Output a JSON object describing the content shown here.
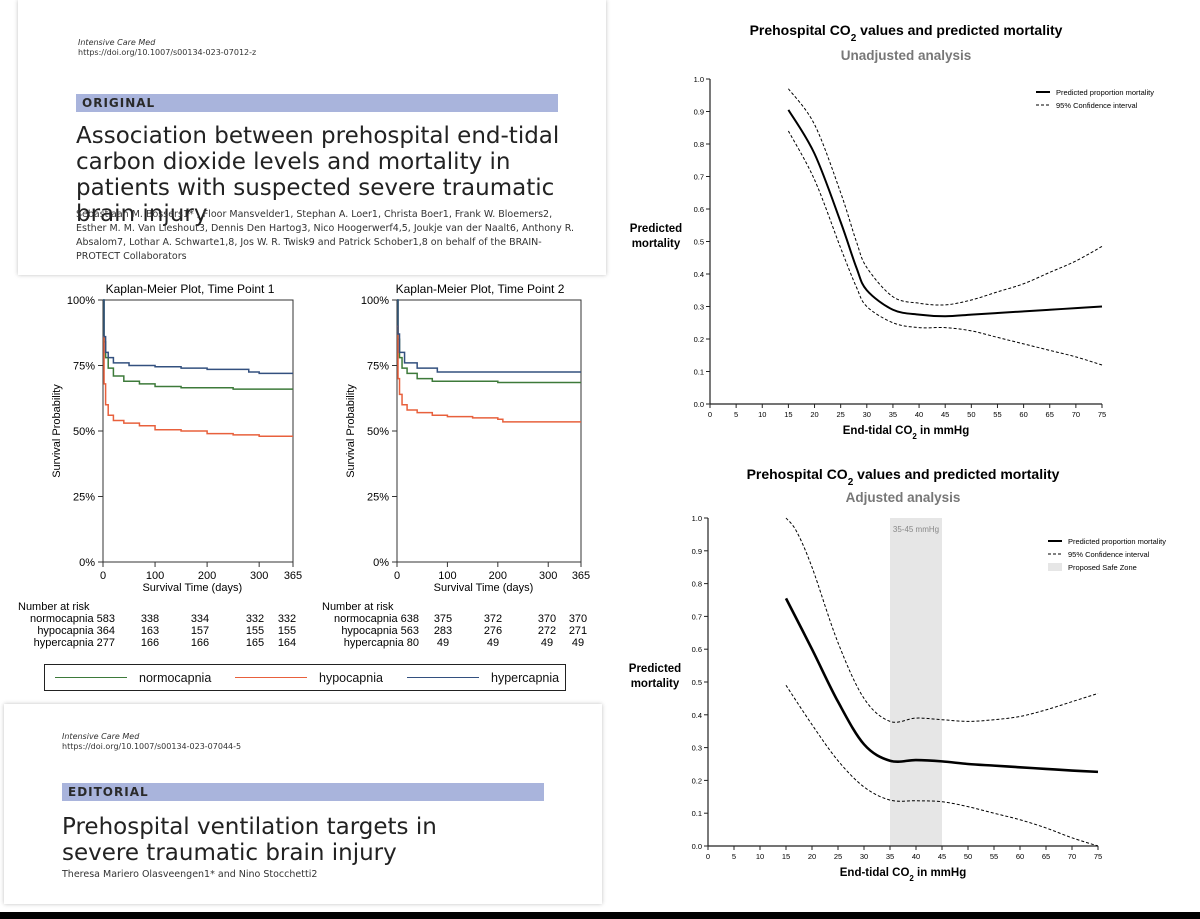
{
  "article_original": {
    "journal": "Intensive Care Med",
    "doi": "https://doi.org/10.1007/s00134-023-07012-z",
    "tag": "ORIGINAL",
    "title": "Association between prehospital end-tidal carbon dioxide levels and mortality in patients with suspected severe traumatic brain injury",
    "authors": "Sebastiaan M. Bossers1* , Floor Mansvelder1, Stephan A. Loer1, Christa Boer1, Frank W. Bloemers2, Esther M. M. Van Lieshout3, Dennis Den Hartog3, Nico Hoogerwerf4,5, Joukje van der Naalt6, Anthony R. Absalom7, Lothar A. Schwarte1,8, Jos W. R. Twisk9 and Patrick Schober1,8 on behalf of the BRAIN-PROTECT Collaborators"
  },
  "article_editorial": {
    "journal": "Intensive Care Med",
    "doi": "https://doi.org/10.1007/s00134-023-07044-5",
    "tag": "EDITORIAL",
    "title": "Prehospital ventilation targets in severe traumatic brain injury",
    "authors": "Theresa Mariero Olasveengen1* and Nino Stocchetti2"
  },
  "colors": {
    "normocapnia": "#3d7a3a",
    "hypocapnia": "#e8603c",
    "hypercapnia": "#33507f",
    "tag_bar": "#a9b4dc",
    "safe_zone": "#e6e6e6"
  },
  "chart_data": [
    {
      "type": "line",
      "title": "Kaplan-Meier Plot, Time Point 1",
      "xlabel": "Survival Time (days)",
      "ylabel": "Survival Probability",
      "xlim": [
        0,
        365
      ],
      "ylim": [
        0,
        1
      ],
      "x_ticks": [
        0,
        100,
        200,
        300,
        365
      ],
      "y_ticks": [
        "0%",
        "25%",
        "50%",
        "75%",
        "100%"
      ],
      "grid": false,
      "series": [
        {
          "name": "normocapnia",
          "points": [
            [
              0,
              1.0
            ],
            [
              2,
              0.84
            ],
            [
              5,
              0.78
            ],
            [
              10,
              0.74
            ],
            [
              20,
              0.71
            ],
            [
              40,
              0.69
            ],
            [
              70,
              0.68
            ],
            [
              100,
              0.67
            ],
            [
              150,
              0.665
            ],
            [
              200,
              0.665
            ],
            [
              250,
              0.66
            ],
            [
              300,
              0.66
            ],
            [
              365,
              0.66
            ]
          ]
        },
        {
          "name": "hypocapnia",
          "points": [
            [
              0,
              0.86
            ],
            [
              2,
              0.68
            ],
            [
              5,
              0.6
            ],
            [
              10,
              0.56
            ],
            [
              20,
              0.54
            ],
            [
              40,
              0.53
            ],
            [
              70,
              0.52
            ],
            [
              100,
              0.505
            ],
            [
              150,
              0.5
            ],
            [
              200,
              0.49
            ],
            [
              250,
              0.485
            ],
            [
              300,
              0.48
            ],
            [
              365,
              0.48
            ]
          ]
        },
        {
          "name": "hypercapnia",
          "points": [
            [
              0,
              1.0
            ],
            [
              2,
              0.86
            ],
            [
              5,
              0.8
            ],
            [
              10,
              0.78
            ],
            [
              20,
              0.76
            ],
            [
              50,
              0.75
            ],
            [
              100,
              0.745
            ],
            [
              150,
              0.74
            ],
            [
              200,
              0.735
            ],
            [
              280,
              0.725
            ],
            [
              300,
              0.72
            ],
            [
              365,
              0.72
            ]
          ]
        }
      ],
      "risk_table": {
        "header": "Number at risk",
        "rows": [
          {
            "label": "normocapnia 583",
            "values": [
              "338",
              "334",
              "332",
              "332"
            ]
          },
          {
            "label": "hypocapnia 364",
            "values": [
              "163",
              "157",
              "155",
              "155"
            ]
          },
          {
            "label": "hypercapnia 277",
            "values": [
              "166",
              "166",
              "165",
              "164"
            ]
          }
        ]
      }
    },
    {
      "type": "line",
      "title": "Kaplan-Meier Plot, Time Point 2",
      "xlabel": "Survival Time (days)",
      "ylabel": "Survival Probability",
      "xlim": [
        0,
        365
      ],
      "ylim": [
        0,
        1
      ],
      "x_ticks": [
        0,
        100,
        200,
        300,
        365
      ],
      "y_ticks": [
        "0%",
        "25%",
        "50%",
        "75%",
        "100%"
      ],
      "grid": false,
      "series": [
        {
          "name": "normocapnia",
          "points": [
            [
              0,
              1.0
            ],
            [
              2,
              0.85
            ],
            [
              5,
              0.78
            ],
            [
              10,
              0.74
            ],
            [
              20,
              0.72
            ],
            [
              40,
              0.7
            ],
            [
              70,
              0.69
            ],
            [
              100,
              0.69
            ],
            [
              200,
              0.685
            ],
            [
              300,
              0.685
            ],
            [
              365,
              0.685
            ]
          ]
        },
        {
          "name": "hypocapnia",
          "points": [
            [
              0,
              0.9
            ],
            [
              2,
              0.7
            ],
            [
              5,
              0.64
            ],
            [
              10,
              0.6
            ],
            [
              20,
              0.58
            ],
            [
              40,
              0.57
            ],
            [
              70,
              0.56
            ],
            [
              100,
              0.555
            ],
            [
              150,
              0.55
            ],
            [
              200,
              0.545
            ],
            [
              210,
              0.535
            ],
            [
              300,
              0.535
            ],
            [
              365,
              0.535
            ]
          ]
        },
        {
          "name": "hypercapnia",
          "points": [
            [
              0,
              1.0
            ],
            [
              2,
              0.87
            ],
            [
              5,
              0.8
            ],
            [
              15,
              0.76
            ],
            [
              40,
              0.74
            ],
            [
              80,
              0.725
            ],
            [
              365,
              0.725
            ]
          ]
        }
      ],
      "risk_table": {
        "header": "Number at risk",
        "rows": [
          {
            "label": "normocapnia 638",
            "values": [
              "375",
              "372",
              "370",
              "370"
            ]
          },
          {
            "label": "hypocapnia 563",
            "values": [
              "283",
              "276",
              "272",
              "271"
            ]
          },
          {
            "label": "hypercapnia 80",
            "values": [
              "49",
              "49",
              "49",
              "49"
            ]
          }
        ]
      }
    },
    {
      "type": "line",
      "title": "Prehospital CO2 values and predicted mortality",
      "subtitle": "Unadjusted analysis",
      "xlabel": "End-tidal CO2 in mmHg",
      "ylabel": "Predicted mortality",
      "xlim": [
        0,
        75
      ],
      "ylim": [
        0,
        1
      ],
      "x_ticks": [
        0,
        5,
        10,
        15,
        20,
        25,
        30,
        35,
        40,
        45,
        50,
        55,
        60,
        65,
        70,
        75
      ],
      "y_ticks": [
        0.0,
        0.1,
        0.2,
        0.3,
        0.4,
        0.5,
        0.6,
        0.7,
        0.8,
        0.9,
        1.0
      ],
      "grid": false,
      "legend": "top-right",
      "series": [
        {
          "name": "Predicted proportion mortality",
          "style": "solid",
          "points": [
            [
              15,
              0.905
            ],
            [
              20,
              0.77
            ],
            [
              25,
              0.56
            ],
            [
              28,
              0.42
            ],
            [
              30,
              0.35
            ],
            [
              35,
              0.29
            ],
            [
              40,
              0.275
            ],
            [
              45,
              0.27
            ],
            [
              50,
              0.275
            ],
            [
              55,
              0.28
            ],
            [
              60,
              0.285
            ],
            [
              65,
              0.29
            ],
            [
              70,
              0.295
            ],
            [
              75,
              0.3
            ]
          ]
        },
        {
          "name": "95% Confidence interval",
          "style": "dashed",
          "points": [
            [
              15,
              0.97
            ],
            [
              20,
              0.86
            ],
            [
              25,
              0.65
            ],
            [
              28,
              0.5
            ],
            [
              30,
              0.42
            ],
            [
              35,
              0.33
            ],
            [
              40,
              0.31
            ],
            [
              45,
              0.305
            ],
            [
              50,
              0.32
            ],
            [
              55,
              0.345
            ],
            [
              60,
              0.37
            ],
            [
              65,
              0.405
            ],
            [
              70,
              0.44
            ],
            [
              75,
              0.485
            ]
          ]
        },
        {
          "name": "95% Confidence interval lower",
          "style": "dashed",
          "points": [
            [
              15,
              0.84
            ],
            [
              20,
              0.69
            ],
            [
              25,
              0.48
            ],
            [
              28,
              0.36
            ],
            [
              30,
              0.3
            ],
            [
              35,
              0.25
            ],
            [
              40,
              0.235
            ],
            [
              45,
              0.235
            ],
            [
              50,
              0.225
            ],
            [
              55,
              0.205
            ],
            [
              60,
              0.185
            ],
            [
              65,
              0.165
            ],
            [
              70,
              0.145
            ],
            [
              75,
              0.12
            ]
          ]
        }
      ]
    },
    {
      "type": "line",
      "title": "Prehospital CO2 values and predicted mortality",
      "subtitle": "Adjusted analysis",
      "xlabel": "End-tidal CO2 in mmHg",
      "ylabel": "Predicted mortality",
      "xlim": [
        0,
        75
      ],
      "ylim": [
        0,
        1
      ],
      "x_ticks": [
        0,
        5,
        10,
        15,
        20,
        25,
        30,
        35,
        40,
        45,
        50,
        55,
        60,
        65,
        70,
        75
      ],
      "y_ticks": [
        0.0,
        0.1,
        0.2,
        0.3,
        0.4,
        0.5,
        0.6,
        0.7,
        0.8,
        0.9,
        1.0
      ],
      "grid": false,
      "legend": "top-right",
      "shaded_region": {
        "x": [
          35,
          45
        ],
        "label": "35-45 mmHg",
        "legend_label": "Proposed Safe Zone"
      },
      "series": [
        {
          "name": "Predicted proportion mortality",
          "style": "solid",
          "points": [
            [
              15,
              0.755
            ],
            [
              20,
              0.6
            ],
            [
              25,
              0.44
            ],
            [
              30,
              0.31
            ],
            [
              35,
              0.26
            ],
            [
              40,
              0.262
            ],
            [
              45,
              0.258
            ],
            [
              50,
              0.25
            ],
            [
              55,
              0.245
            ],
            [
              60,
              0.24
            ],
            [
              65,
              0.235
            ],
            [
              70,
              0.23
            ],
            [
              75,
              0.226
            ]
          ]
        },
        {
          "name": "95% Confidence interval",
          "style": "dashed",
          "points": [
            [
              15,
              1.0
            ],
            [
              17,
              0.96
            ],
            [
              20,
              0.85
            ],
            [
              25,
              0.62
            ],
            [
              30,
              0.45
            ],
            [
              35,
              0.38
            ],
            [
              40,
              0.39
            ],
            [
              45,
              0.385
            ],
            [
              50,
              0.38
            ],
            [
              55,
              0.385
            ],
            [
              60,
              0.395
            ],
            [
              65,
              0.415
            ],
            [
              70,
              0.44
            ],
            [
              75,
              0.465
            ]
          ]
        },
        {
          "name": "95% Confidence interval lower",
          "style": "dashed",
          "points": [
            [
              15,
              0.49
            ],
            [
              20,
              0.37
            ],
            [
              25,
              0.26
            ],
            [
              30,
              0.18
            ],
            [
              35,
              0.14
            ],
            [
              40,
              0.138
            ],
            [
              45,
              0.135
            ],
            [
              50,
              0.12
            ],
            [
              55,
              0.1
            ],
            [
              60,
              0.08
            ],
            [
              65,
              0.055
            ],
            [
              70,
              0.025
            ],
            [
              75,
              0.0
            ]
          ]
        }
      ]
    }
  ],
  "km_legend": [
    "normocapnia",
    "hypocapnia",
    "hypercapnia"
  ]
}
